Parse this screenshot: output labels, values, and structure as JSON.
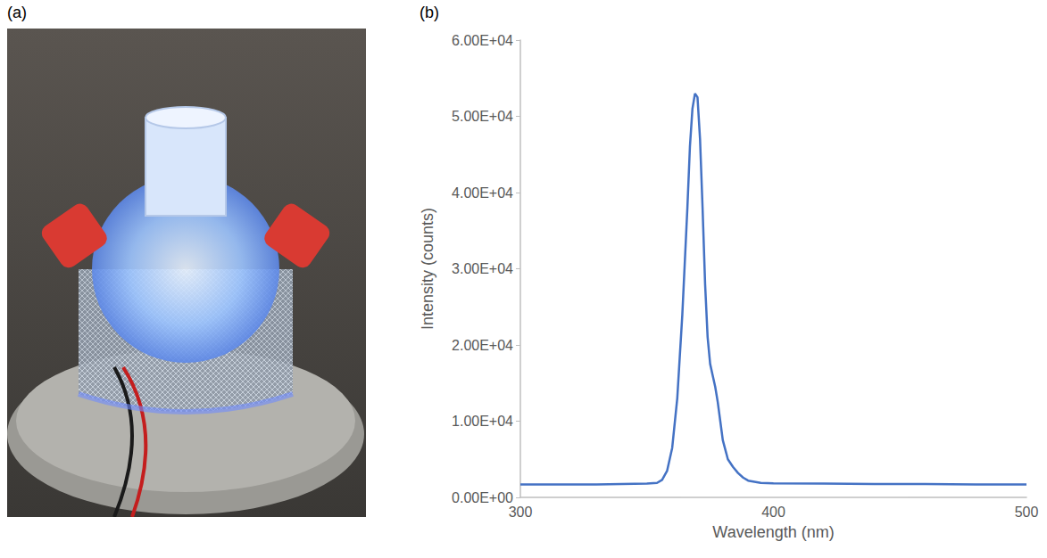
{
  "panel_labels": [
    "(a)",
    "(b)"
  ],
  "chart_data": {
    "type": "line",
    "x_label": "Wavelength (nm)",
    "y_label": "Intensity (counts)",
    "x": [
      300,
      310,
      320,
      330,
      340,
      350,
      354,
      356,
      358,
      360,
      362,
      364,
      366,
      367,
      368,
      369,
      370,
      371,
      372,
      373,
      374,
      375,
      376,
      377,
      378,
      379,
      380,
      382,
      384,
      386,
      388,
      390,
      395,
      400,
      420,
      440,
      460,
      480,
      500
    ],
    "values": [
      1700,
      1700,
      1700,
      1700,
      1750,
      1800,
      1900,
      2300,
      3500,
      6500,
      13000,
      24000,
      38000,
      46000,
      51000,
      53000,
      52500,
      47000,
      38000,
      28000,
      21000,
      17500,
      16000,
      14500,
      12500,
      10000,
      7500,
      5000,
      4000,
      3200,
      2600,
      2200,
      1900,
      1850,
      1800,
      1750,
      1750,
      1700,
      1700
    ],
    "color": "#4472c4",
    "xlim": [
      300,
      500
    ],
    "xticks": [
      300,
      400,
      500
    ],
    "ylim": [
      0,
      60000
    ],
    "yticks": [
      {
        "value": 0,
        "label": "0.00E+00"
      },
      {
        "value": 10000,
        "label": "1.00E+04"
      },
      {
        "value": 20000,
        "label": "2.00E+04"
      },
      {
        "value": 30000,
        "label": "3.00E+04"
      },
      {
        "value": 40000,
        "label": "4.00E+04"
      },
      {
        "value": 50000,
        "label": "5.00E+04"
      },
      {
        "value": 60000,
        "label": "6.00E+04"
      }
    ],
    "grid": false
  }
}
